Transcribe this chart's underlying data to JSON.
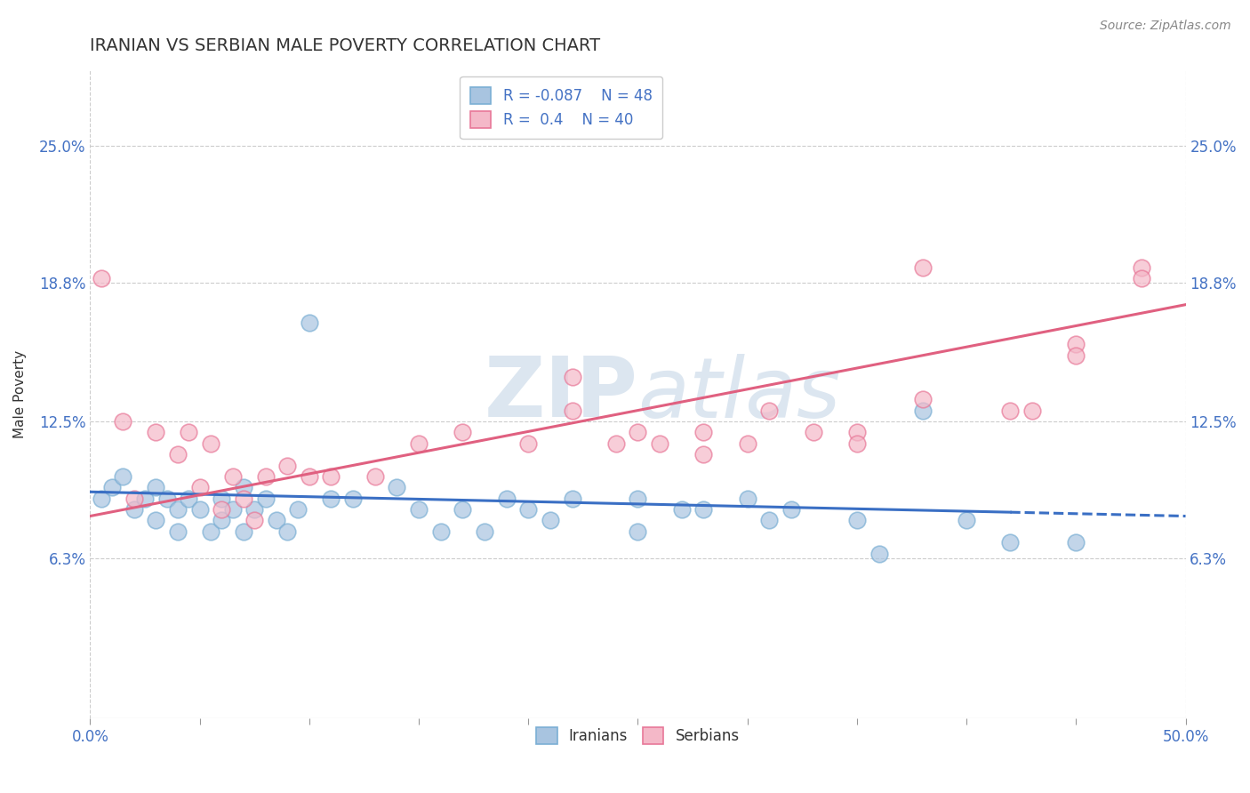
{
  "title": "IRANIAN VS SERBIAN MALE POVERTY CORRELATION CHART",
  "source": "Source: ZipAtlas.com",
  "ylabel": "Male Poverty",
  "xlim": [
    0.0,
    0.5
  ],
  "ylim": [
    -0.01,
    0.285
  ],
  "yticks": [
    0.063,
    0.125,
    0.188,
    0.25
  ],
  "ytick_labels": [
    "6.3%",
    "12.5%",
    "18.8%",
    "25.0%"
  ],
  "xticks": [
    0.0,
    0.05,
    0.1,
    0.15,
    0.2,
    0.25,
    0.3,
    0.35,
    0.4,
    0.45,
    0.5
  ],
  "xtick_edge": [
    0.0,
    0.5
  ],
  "xtick_labels_show": [
    "0.0%",
    "",
    "",
    "",
    "",
    "",
    "",
    "",
    "",
    "",
    "50.0%"
  ],
  "color_iranians": "#a8c4e0",
  "color_serbians": "#f4b8c8",
  "color_iranians_edge": "#7bafd4",
  "color_serbians_edge": "#e87898",
  "R_iranians": -0.087,
  "N_iranians": 48,
  "R_serbians": 0.4,
  "N_serbians": 40,
  "iranians_x": [
    0.005,
    0.01,
    0.015,
    0.02,
    0.025,
    0.03,
    0.03,
    0.035,
    0.04,
    0.04,
    0.045,
    0.05,
    0.055,
    0.06,
    0.06,
    0.065,
    0.07,
    0.07,
    0.075,
    0.08,
    0.085,
    0.09,
    0.095,
    0.1,
    0.11,
    0.12,
    0.14,
    0.15,
    0.16,
    0.17,
    0.18,
    0.19,
    0.2,
    0.21,
    0.22,
    0.25,
    0.27,
    0.3,
    0.32,
    0.35,
    0.38,
    0.4,
    0.42,
    0.25,
    0.28,
    0.31,
    0.36,
    0.45
  ],
  "iranians_y": [
    0.09,
    0.095,
    0.1,
    0.085,
    0.09,
    0.095,
    0.08,
    0.09,
    0.085,
    0.075,
    0.09,
    0.085,
    0.075,
    0.09,
    0.08,
    0.085,
    0.095,
    0.075,
    0.085,
    0.09,
    0.08,
    0.075,
    0.085,
    0.17,
    0.09,
    0.09,
    0.095,
    0.085,
    0.075,
    0.085,
    0.075,
    0.09,
    0.085,
    0.08,
    0.09,
    0.09,
    0.085,
    0.09,
    0.085,
    0.08,
    0.13,
    0.08,
    0.07,
    0.075,
    0.085,
    0.08,
    0.065,
    0.07
  ],
  "serbians_x": [
    0.005,
    0.015,
    0.02,
    0.03,
    0.04,
    0.045,
    0.05,
    0.055,
    0.06,
    0.065,
    0.07,
    0.075,
    0.08,
    0.09,
    0.1,
    0.11,
    0.13,
    0.15,
    0.17,
    0.2,
    0.22,
    0.24,
    0.26,
    0.28,
    0.3,
    0.31,
    0.33,
    0.35,
    0.38,
    0.43,
    0.45,
    0.48,
    0.22,
    0.25,
    0.28,
    0.38,
    0.42,
    0.45,
    0.48,
    0.35
  ],
  "serbians_y": [
    0.19,
    0.125,
    0.09,
    0.12,
    0.11,
    0.12,
    0.095,
    0.115,
    0.085,
    0.1,
    0.09,
    0.08,
    0.1,
    0.105,
    0.1,
    0.1,
    0.1,
    0.115,
    0.12,
    0.115,
    0.13,
    0.115,
    0.115,
    0.11,
    0.115,
    0.13,
    0.12,
    0.12,
    0.135,
    0.13,
    0.16,
    0.195,
    0.145,
    0.12,
    0.12,
    0.195,
    0.13,
    0.155,
    0.19,
    0.115
  ],
  "trend_ir_y0": 0.093,
  "trend_ir_y1": 0.082,
  "trend_sr_y0": 0.082,
  "trend_sr_y1": 0.178,
  "background_color": "#ffffff",
  "grid_color": "#cccccc",
  "watermark_color": "#dce6f0",
  "title_fontsize": 14,
  "axis_label_fontsize": 11,
  "tick_fontsize": 12,
  "legend_fontsize": 12,
  "source_fontsize": 10
}
